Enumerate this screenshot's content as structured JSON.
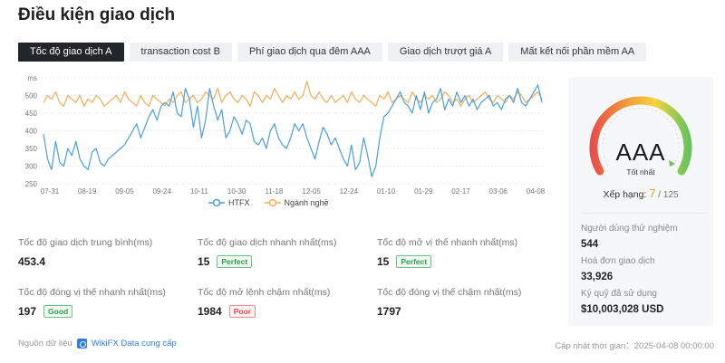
{
  "page": {
    "title": "Điều kiện giao dịch"
  },
  "tabs": [
    {
      "label": "Tốc độ giao dịch A",
      "active": true
    },
    {
      "label": "transaction cost B",
      "active": false
    },
    {
      "label": "Phí giao dịch qua đêm AAA",
      "active": false
    },
    {
      "label": "Giao dịch trượt giá A",
      "active": false
    },
    {
      "label": "Mất kết nối phần mềm AA",
      "active": false
    }
  ],
  "chart_data": {
    "type": "line",
    "x_ticks": [
      "07-31",
      "08-19",
      "09-05",
      "09-24",
      "10-11",
      "10-30",
      "11-18",
      "12-05",
      "12-24",
      "01-10",
      "01-29",
      "02-17",
      "03-06",
      "04-08"
    ],
    "y_ticks": [
      250,
      300,
      350,
      400,
      450,
      500,
      550
    ],
    "y_tick_labels": [
      "250",
      "300",
      "350",
      "400",
      "450",
      "500",
      "ms"
    ],
    "ylim": [
      250,
      550
    ],
    "grid": true,
    "legend_position": "bottom",
    "series": [
      {
        "name": "HTFX",
        "color": "#4a9fdc",
        "values": [
          390,
          320,
          290,
          370,
          310,
          300,
          350,
          330,
          370,
          320,
          300,
          290,
          340,
          350,
          310,
          300,
          320,
          330,
          340,
          350,
          360,
          380,
          400,
          420,
          380,
          410,
          440,
          460,
          430,
          470,
          480,
          470,
          510,
          450,
          440,
          520,
          490,
          410,
          470,
          380,
          430,
          520,
          470,
          430,
          460,
          380,
          400,
          440,
          420,
          390,
          430,
          420,
          370,
          360,
          380,
          350,
          400,
          420,
          380,
          360,
          350,
          380,
          420,
          400,
          420,
          380,
          350,
          320,
          370,
          410,
          390,
          360,
          380,
          350,
          320,
          300,
          360,
          290,
          310,
          380,
          330,
          270,
          300,
          380,
          440,
          450,
          470,
          490,
          510,
          480,
          470,
          450,
          500,
          460,
          510,
          450,
          480,
          490,
          520,
          460,
          490,
          470,
          510,
          480,
          500,
          470,
          490,
          460,
          480,
          490,
          500,
          470,
          480,
          460,
          490,
          500,
          480,
          520,
          480,
          470,
          490,
          510,
          530,
          480
        ]
      },
      {
        "name": "Ngành nghề",
        "color": "#f0ad5a",
        "values": [
          480,
          500,
          490,
          510,
          480,
          470,
          500,
          490,
          480,
          500,
          470,
          490,
          480,
          500,
          490,
          470,
          480,
          490,
          500,
          480,
          510,
          490,
          480,
          470,
          500,
          480,
          470,
          500,
          490,
          480,
          470,
          490,
          480,
          500,
          510,
          480,
          490,
          500,
          480,
          490,
          510,
          500,
          490,
          520,
          480,
          500,
          510,
          490,
          480,
          500,
          490,
          470,
          510,
          500,
          480,
          500,
          490,
          520,
          500,
          480,
          500,
          490,
          510,
          490,
          500,
          540,
          500,
          490,
          510,
          490,
          480,
          500,
          480,
          490,
          500,
          480,
          510,
          490,
          480,
          500,
          490,
          480,
          470,
          500,
          490,
          510,
          480,
          490,
          500,
          490,
          480,
          510,
          490,
          480,
          500,
          490,
          500,
          480,
          490,
          510,
          500,
          480,
          490,
          470,
          490,
          500,
          480,
          490,
          500,
          510,
          490,
          480,
          500,
          490,
          480,
          500,
          490,
          510,
          500,
          480,
          490,
          500,
          510,
          490
        ]
      }
    ]
  },
  "legend": {
    "htfx": "HTFX",
    "industry": "Ngành nghề"
  },
  "stats": [
    {
      "label": "Tốc độ giao dịch trung bình(ms)",
      "value": "453.4",
      "badge": "",
      "badge_type": ""
    },
    {
      "label": "Tốc độ giao dịch nhanh nhất(ms)",
      "value": "15",
      "badge": "Perfect",
      "badge_type": "perfect"
    },
    {
      "label": "Tốc độ mở vị thế nhanh nhất(ms)",
      "value": "15",
      "badge": "Perfect",
      "badge_type": "perfect"
    },
    {
      "label": "Tốc độ đóng vị thế nhanh nhất(ms)",
      "value": "197",
      "badge": "Good",
      "badge_type": "good"
    },
    {
      "label": "Tốc độ mở lệnh chậm nhất(ms)",
      "value": "1984",
      "badge": "Poor",
      "badge_type": "poor"
    },
    {
      "label": "Tốc độ đóng vị thế chậm nhất(ms)",
      "value": "1797",
      "badge": "",
      "badge_type": ""
    }
  ],
  "footer": {
    "source_label": "Nguồn dữ liệu",
    "source_link": "WikiFX Data cung cấp",
    "updated": "Cập nhật thời gian：2025-04-08 00:00:00"
  },
  "side": {
    "grade": "AAA",
    "grade_sub": "Tốt nhất",
    "rank_label": "Xếp hạng: ",
    "rank_num": "7",
    "rank_total": " / 125",
    "gauge_colors": [
      "#e8514a",
      "#f29a3a",
      "#f5d43c",
      "#69c35c"
    ],
    "info": [
      {
        "label": "Người dùng thử nghiệm",
        "value": "544"
      },
      {
        "label": "Hoá đơn giao dịch",
        "value": "33,926"
      },
      {
        "label": "Ký quỹ đã sử dụng",
        "value": "$10,003,028 USD"
      }
    ]
  }
}
